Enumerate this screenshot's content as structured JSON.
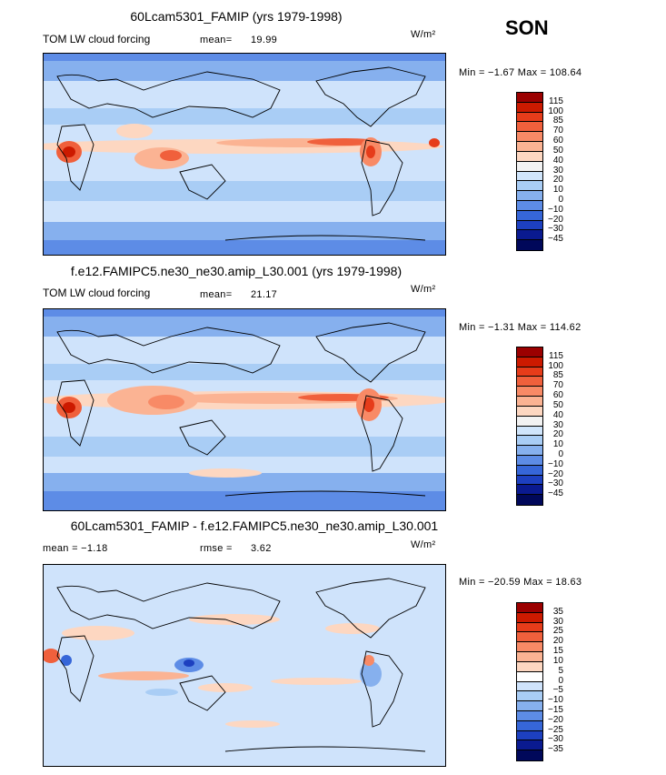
{
  "season": "SON",
  "units": "W/m²",
  "panels": [
    {
      "title": "60Lcam5301_FAMIP (yrs 1979-1998)",
      "left_label": "TOM LW cloud forcing",
      "stat_label": "mean=",
      "stat_value": "19.99",
      "minmax": "Min =  −1.67 Max = 108.64",
      "levels": [
        "115",
        "100",
        "85",
        "70",
        "60",
        "50",
        "40",
        "30",
        "20",
        "10",
        "0",
        "−10",
        "−20",
        "−30",
        "−45"
      ],
      "colors": [
        "#9b0000",
        "#cc1a00",
        "#e63c1a",
        "#f0603c",
        "#f88a66",
        "#fbb393",
        "#fdd7c1",
        "#f2f2f2",
        "#d0e5fb",
        "#a9cdf5",
        "#86b0ee",
        "#5d8ce6",
        "#3666d8",
        "#1d40c0",
        "#0a1a90",
        "#00085a"
      ]
    },
    {
      "title": "f.e12.FAMIPC5.ne30_ne30.amip_L30.001 (yrs 1979-1998)",
      "left_label": "TOM LW cloud forcing",
      "stat_label": "mean=",
      "stat_value": "21.17",
      "minmax": "Min =  −1.31 Max = 114.62",
      "levels": [
        "115",
        "100",
        "85",
        "70",
        "60",
        "50",
        "40",
        "30",
        "20",
        "10",
        "0",
        "−10",
        "−20",
        "−30",
        "−45"
      ],
      "colors": [
        "#9b0000",
        "#cc1a00",
        "#e63c1a",
        "#f0603c",
        "#f88a66",
        "#fbb393",
        "#fdd7c1",
        "#f2f2f2",
        "#d0e5fb",
        "#a9cdf5",
        "#86b0ee",
        "#5d8ce6",
        "#3666d8",
        "#1d40c0",
        "#0a1a90",
        "#00085a"
      ]
    },
    {
      "title": "60Lcam5301_FAMIP - f.e12.FAMIPC5.ne30_ne30.amip_L30.001",
      "left_label": "mean =   −1.18",
      "stat_label": "rmse =",
      "stat_value": "3.62",
      "minmax": "Min = −20.59 Max =  18.63",
      "levels": [
        "35",
        "30",
        "25",
        "20",
        "15",
        "10",
        "5",
        "0",
        "−5",
        "−10",
        "−15",
        "−20",
        "−25",
        "−30",
        "−35"
      ],
      "colors": [
        "#9b0000",
        "#cc1a00",
        "#e63c1a",
        "#f0603c",
        "#f88a66",
        "#fbb393",
        "#fdd7c1",
        "#ffffff",
        "#cfe3fb",
        "#a9cdf5",
        "#86b0ee",
        "#5d8ce6",
        "#3666d8",
        "#1d40c0",
        "#0a1a90",
        "#00085a"
      ]
    }
  ]
}
